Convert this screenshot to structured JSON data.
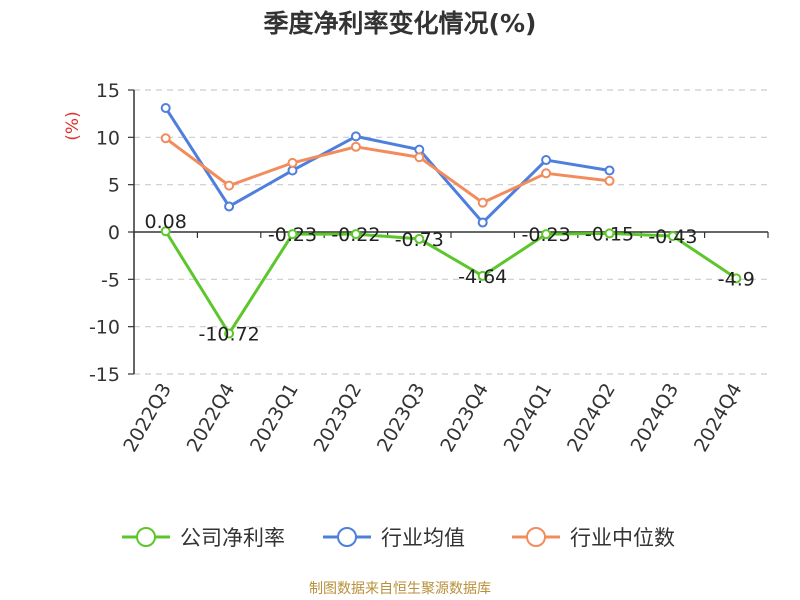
{
  "title": "季度净利率变化情况(%)",
  "source": "制图数据来自恒生聚源数据库",
  "chart_data": {
    "type": "line",
    "title": "季度净利率变化情况(%)",
    "ylabel": "(%)",
    "xlabel": "",
    "ylim": [
      -15,
      15
    ],
    "yticks": [
      15,
      10,
      5,
      0,
      -5,
      -10,
      -15
    ],
    "grid": "horizontal-dashed",
    "legend_position": "bottom",
    "categories": [
      "2022Q3",
      "2022Q4",
      "2023Q1",
      "2023Q2",
      "2023Q3",
      "2023Q4",
      "2024Q1",
      "2024Q2",
      "2024Q3",
      "2024Q4"
    ],
    "series": [
      {
        "name": "公司净利率",
        "color": "#5cc72b",
        "values": [
          0.08,
          -10.72,
          -0.23,
          -0.22,
          -0.73,
          -4.64,
          -0.23,
          -0.15,
          -0.43,
          -4.9
        ],
        "labels": [
          "0.08",
          "-10.72",
          "-0.23",
          "-0.22",
          "-0.73",
          "-4.64",
          "-0.23",
          "-0.15",
          "-0.43",
          "-4.9"
        ]
      },
      {
        "name": "行业均值",
        "color": "#4f7fdc",
        "values": [
          13.1,
          2.7,
          6.5,
          10.1,
          8.7,
          1.0,
          7.6,
          6.5,
          null,
          null
        ]
      },
      {
        "name": "行业中位数",
        "color": "#f28c5c",
        "values": [
          9.9,
          4.9,
          7.3,
          9.0,
          7.9,
          3.1,
          6.2,
          5.4,
          null,
          null
        ]
      }
    ]
  }
}
